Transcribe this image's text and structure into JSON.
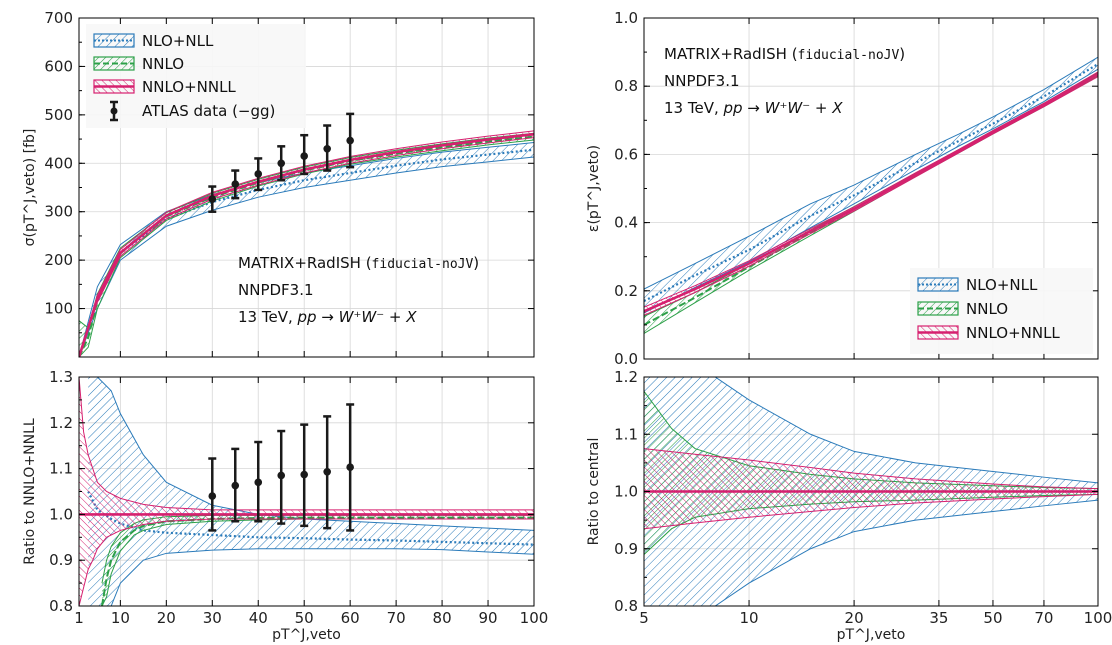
{
  "colors": {
    "nlo_nll": "#2b7bba",
    "nnlo": "#2ca048",
    "nnlo_nnll": "#d6206f",
    "data": "#1a1a1a",
    "grid": "#d7d7d7"
  },
  "texts": {
    "matrix_label": "MATRIX+RadISH (",
    "matrix_mono": "fiducial-noJV",
    "matrix_close": ")",
    "pdf": "NNPDF3.1",
    "energy_prefix": "13 TeV, ",
    "process": "pp → W⁺W⁻ + X"
  },
  "chart_data": [
    {
      "id": "top-left",
      "type": "line",
      "ylabel": "σ(pT^J,veto) [fb]",
      "xlabel": "",
      "xlim": [
        1,
        100
      ],
      "ylim": [
        0,
        700
      ],
      "x_scale": "linear",
      "grid": true,
      "legend": "top-left",
      "xticks": [
        1,
        10,
        20,
        30,
        40,
        50,
        60,
        70,
        80,
        90,
        100
      ],
      "yticks": [
        100,
        200,
        300,
        400,
        500,
        600,
        700
      ],
      "series": [
        {
          "name": "NLO+NLL",
          "style": "band-dotted",
          "x": [
            1,
            5,
            10,
            20,
            30,
            40,
            50,
            60,
            70,
            80,
            90,
            100
          ],
          "central": [
            0,
            120,
            215,
            285,
            320,
            345,
            365,
            380,
            395,
            408,
            418,
            428
          ],
          "low": [
            0,
            100,
            200,
            270,
            303,
            330,
            350,
            365,
            380,
            393,
            403,
            413
          ],
          "high": [
            0,
            145,
            232,
            300,
            335,
            360,
            380,
            395,
            410,
            423,
            433,
            443
          ]
        },
        {
          "name": "NNLO",
          "style": "band-dashed",
          "x": [
            1,
            3,
            5,
            10,
            20,
            30,
            40,
            50,
            60,
            70,
            80,
            90,
            100
          ],
          "central": [
            0,
            40,
            115,
            215,
            290,
            330,
            360,
            385,
            405,
            420,
            433,
            445,
            455
          ],
          "low": [
            0,
            20,
            100,
            205,
            282,
            322,
            353,
            378,
            398,
            413,
            426,
            438,
            448
          ],
          "high": [
            75,
            60,
            130,
            225,
            298,
            338,
            367,
            392,
            412,
            427,
            440,
            452,
            462
          ]
        },
        {
          "name": "NNLO+NNLL",
          "style": "band-solid",
          "x": [
            1,
            5,
            10,
            20,
            30,
            40,
            50,
            60,
            70,
            80,
            90,
            100
          ],
          "central": [
            0,
            120,
            215,
            292,
            333,
            362,
            387,
            407,
            423,
            437,
            449,
            460
          ],
          "low": [
            0,
            113,
            208,
            285,
            326,
            355,
            380,
            400,
            416,
            430,
            442,
            453
          ],
          "high": [
            0,
            128,
            222,
            299,
            340,
            369,
            394,
            414,
            430,
            444,
            456,
            467
          ]
        },
        {
          "name": "ATLAS data (−gg)",
          "style": "errorbar",
          "x": [
            30,
            35,
            40,
            45,
            50,
            55,
            60
          ],
          "central": [
            326,
            357,
            378,
            400,
            415,
            430,
            447
          ],
          "low": [
            300,
            328,
            345,
            365,
            378,
            385,
            392
          ],
          "high": [
            352,
            385,
            410,
            435,
            458,
            478,
            502
          ]
        }
      ]
    },
    {
      "id": "bottom-left",
      "type": "line",
      "ylabel": "Ratio to NNLO+NNLL",
      "xlabel": "pT^J,veto",
      "xlim": [
        1,
        100
      ],
      "ylim": [
        0.8,
        1.3
      ],
      "x_scale": "linear",
      "grid": true,
      "xticks": [
        1,
        10,
        20,
        30,
        40,
        50,
        60,
        70,
        80,
        90,
        100
      ],
      "yticks": [
        0.8,
        0.9,
        1.0,
        1.1,
        1.2,
        1.3
      ],
      "series": [
        {
          "name": "NLO+NLL",
          "style": "band-dotted",
          "x": [
            3,
            5,
            8,
            10,
            15,
            20,
            30,
            40,
            50,
            60,
            70,
            80,
            90,
            100
          ],
          "central": [
            1.05,
            1.01,
            0.99,
            0.98,
            0.965,
            0.96,
            0.955,
            0.95,
            0.948,
            0.945,
            0.943,
            0.94,
            0.937,
            0.934
          ],
          "low": [
            0.8,
            0.8,
            0.8,
            0.85,
            0.9,
            0.915,
            0.922,
            0.925,
            0.925,
            0.925,
            0.925,
            0.923,
            0.918,
            0.913
          ],
          "high": [
            1.3,
            1.3,
            1.27,
            1.22,
            1.13,
            1.07,
            1.02,
            1.0,
            0.99,
            0.985,
            0.98,
            0.975,
            0.97,
            0.965
          ]
        },
        {
          "name": "NNLO",
          "style": "band-dashed",
          "x": [
            6,
            7,
            8,
            10,
            13,
            15,
            20,
            30,
            40,
            50,
            60,
            70,
            80,
            90,
            100
          ],
          "central": [
            0.8,
            0.86,
            0.9,
            0.94,
            0.965,
            0.975,
            0.985,
            0.99,
            0.992,
            0.993,
            0.993,
            0.993,
            0.993,
            0.993,
            0.993
          ],
          "low": [
            0.8,
            0.82,
            0.87,
            0.92,
            0.955,
            0.965,
            0.978,
            0.985,
            0.988,
            0.99,
            0.99,
            0.99,
            0.99,
            0.99,
            0.99
          ],
          "high": [
            0.85,
            0.9,
            0.93,
            0.96,
            0.98,
            0.988,
            0.995,
            0.998,
            0.998,
            0.998,
            0.998,
            0.998,
            0.998,
            0.998,
            0.998
          ]
        },
        {
          "name": "NNLO+NNLL",
          "style": "band-solid",
          "x": [
            1,
            2,
            3,
            4,
            5,
            7,
            10,
            15,
            20,
            30,
            40,
            50,
            60,
            70,
            80,
            90,
            100
          ],
          "central": [
            1,
            1,
            1,
            1,
            1,
            1,
            1,
            1,
            1,
            1,
            1,
            1,
            1,
            1,
            1,
            1,
            1
          ],
          "low": [
            0.8,
            0.84,
            0.88,
            0.9,
            0.925,
            0.95,
            0.965,
            0.978,
            0.985,
            0.99,
            0.99,
            0.99,
            0.99,
            0.99,
            0.99,
            0.99,
            0.99
          ],
          "high": [
            1.3,
            1.18,
            1.13,
            1.1,
            1.07,
            1.05,
            1.035,
            1.022,
            1.015,
            1.01,
            1.01,
            1.01,
            1.01,
            1.01,
            1.01,
            1.01,
            1.01
          ]
        },
        {
          "name": "ATLAS data (−gg)",
          "style": "errorbar",
          "x": [
            30,
            35,
            40,
            45,
            50,
            55,
            60
          ],
          "central": [
            1.04,
            1.063,
            1.07,
            1.085,
            1.087,
            1.093,
            1.103
          ],
          "low": [
            0.965,
            0.985,
            0.985,
            0.98,
            0.975,
            0.97,
            0.965
          ],
          "high": [
            1.122,
            1.143,
            1.158,
            1.182,
            1.196,
            1.214,
            1.24
          ]
        }
      ]
    },
    {
      "id": "top-right",
      "type": "line",
      "ylabel": "ε(pT^J,veto)",
      "xlabel": "",
      "xlim": [
        5,
        100
      ],
      "ylim": [
        0.0,
        1.0
      ],
      "x_scale": "log",
      "grid": true,
      "legend": "bottom-right",
      "xticks": [
        5,
        10,
        20,
        35,
        50,
        70,
        100
      ],
      "yticks": [
        0.0,
        0.2,
        0.4,
        0.6,
        0.8,
        1.0
      ],
      "series": [
        {
          "name": "NLO+NLL",
          "style": "band-dotted",
          "x": [
            5,
            7,
            10,
            15,
            20,
            30,
            40,
            50,
            70,
            100
          ],
          "central": [
            0.17,
            0.245,
            0.32,
            0.42,
            0.48,
            0.575,
            0.64,
            0.69,
            0.77,
            0.865
          ],
          "low": [
            0.135,
            0.21,
            0.285,
            0.385,
            0.455,
            0.555,
            0.625,
            0.675,
            0.755,
            0.85
          ],
          "high": [
            0.205,
            0.28,
            0.36,
            0.455,
            0.51,
            0.6,
            0.66,
            0.71,
            0.79,
            0.885
          ]
        },
        {
          "name": "NNLO",
          "style": "band-dashed",
          "x": [
            5,
            7,
            10,
            15,
            20,
            30,
            40,
            50,
            70,
            100
          ],
          "central": [
            0.1,
            0.18,
            0.27,
            0.37,
            0.44,
            0.54,
            0.61,
            0.665,
            0.745,
            0.835
          ],
          "low": [
            0.075,
            0.165,
            0.26,
            0.362,
            0.433,
            0.535,
            0.605,
            0.66,
            0.74,
            0.83
          ],
          "high": [
            0.125,
            0.195,
            0.28,
            0.378,
            0.447,
            0.545,
            0.615,
            0.67,
            0.75,
            0.84
          ]
        },
        {
          "name": "NNLO+NNLL",
          "style": "band-solid",
          "x": [
            5,
            7,
            10,
            15,
            20,
            30,
            40,
            50,
            70,
            100
          ],
          "central": [
            0.14,
            0.205,
            0.28,
            0.375,
            0.44,
            0.54,
            0.61,
            0.665,
            0.745,
            0.835
          ],
          "low": [
            0.128,
            0.195,
            0.272,
            0.368,
            0.434,
            0.534,
            0.605,
            0.66,
            0.74,
            0.828
          ],
          "high": [
            0.152,
            0.215,
            0.288,
            0.382,
            0.446,
            0.546,
            0.615,
            0.67,
            0.75,
            0.842
          ]
        }
      ]
    },
    {
      "id": "bottom-right",
      "type": "line",
      "ylabel": "Ratio to central",
      "xlabel": "pT^J,veto",
      "xlim": [
        5,
        100
      ],
      "ylim": [
        0.8,
        1.2
      ],
      "x_scale": "log",
      "grid": true,
      "xticks": [
        5,
        10,
        20,
        35,
        50,
        70,
        100
      ],
      "yticks": [
        0.8,
        0.9,
        1.0,
        1.1,
        1.2
      ],
      "series": [
        {
          "name": "NLO+NLL",
          "style": "band-dotted",
          "x": [
            5,
            6,
            7,
            8,
            10,
            15,
            20,
            30,
            50,
            70,
            100
          ],
          "central": [
            1,
            1,
            1,
            1,
            1,
            1,
            1,
            1,
            1,
            1,
            1
          ],
          "low": [
            0.8,
            0.8,
            0.8,
            0.8,
            0.84,
            0.9,
            0.93,
            0.95,
            0.965,
            0.975,
            0.985
          ],
          "high": [
            1.2,
            1.2,
            1.2,
            1.2,
            1.16,
            1.1,
            1.07,
            1.05,
            1.035,
            1.025,
            1.015
          ]
        },
        {
          "name": "NNLO",
          "style": "band-dashed",
          "x": [
            5,
            6,
            7,
            10,
            15,
            20,
            30,
            50,
            70,
            100
          ],
          "central": [
            1,
            1,
            1,
            1,
            1,
            1,
            1,
            1,
            1,
            1
          ],
          "low": [
            0.89,
            0.935,
            0.955,
            0.97,
            0.978,
            0.982,
            0.985,
            0.99,
            0.993,
            0.995
          ],
          "high": [
            1.175,
            1.11,
            1.075,
            1.045,
            1.03,
            1.022,
            1.015,
            1.01,
            1.007,
            1.005
          ]
        },
        {
          "name": "NNLO+NNLL",
          "style": "band-solid",
          "x": [
            5,
            7,
            10,
            15,
            20,
            30,
            50,
            70,
            100
          ],
          "central": [
            1,
            1,
            1,
            1,
            1,
            1,
            1,
            1,
            1
          ],
          "low": [
            0.935,
            0.945,
            0.955,
            0.965,
            0.972,
            0.98,
            0.987,
            0.991,
            0.995
          ],
          "high": [
            1.075,
            1.065,
            1.055,
            1.042,
            1.032,
            1.022,
            1.013,
            1.008,
            1.005
          ]
        }
      ]
    }
  ]
}
